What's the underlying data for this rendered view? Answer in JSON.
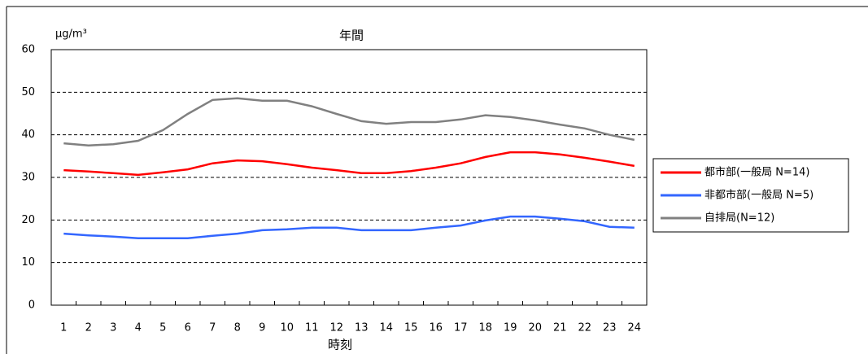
{
  "chart_data": {
    "type": "line",
    "title": "年間",
    "y_label": "μg/m³",
    "x_label": "時刻",
    "categories": [
      "1",
      "2",
      "3",
      "4",
      "5",
      "6",
      "7",
      "8",
      "9",
      "10",
      "11",
      "12",
      "13",
      "14",
      "15",
      "16",
      "17",
      "18",
      "19",
      "20",
      "21",
      "22",
      "23",
      "24"
    ],
    "series": [
      {
        "name": "都市部(一般局 N=14)",
        "color": "#ff0000",
        "values": [
          31.7,
          31.4,
          31.0,
          30.6,
          31.2,
          31.9,
          33.3,
          34.0,
          33.8,
          33.1,
          32.3,
          31.7,
          31.0,
          31.0,
          31.5,
          32.3,
          33.3,
          34.8,
          35.9,
          35.9,
          35.4,
          34.6,
          33.7,
          32.7
        ]
      },
      {
        "name": "非都市部(一般局 N=5)",
        "color": "#3366ff",
        "values": [
          16.8,
          16.4,
          16.1,
          15.7,
          15.7,
          15.7,
          16.3,
          16.8,
          17.6,
          17.8,
          18.2,
          18.2,
          17.6,
          17.6,
          17.6,
          18.2,
          18.7,
          19.9,
          20.8,
          20.8,
          20.3,
          19.7,
          18.4,
          18.2
        ]
      },
      {
        "name": "自排局(N=12)",
        "color": "#808080",
        "values": [
          38.0,
          37.5,
          37.8,
          38.6,
          41.1,
          44.9,
          48.2,
          48.6,
          48.0,
          48.0,
          46.7,
          44.9,
          43.2,
          42.6,
          43.0,
          43.0,
          43.6,
          44.6,
          44.2,
          43.4,
          42.4,
          41.5,
          40.0,
          38.8
        ]
      }
    ],
    "ylim": [
      0,
      60
    ],
    "yticks": [
      0,
      10,
      20,
      30,
      40,
      50,
      60
    ],
    "grid": true
  }
}
